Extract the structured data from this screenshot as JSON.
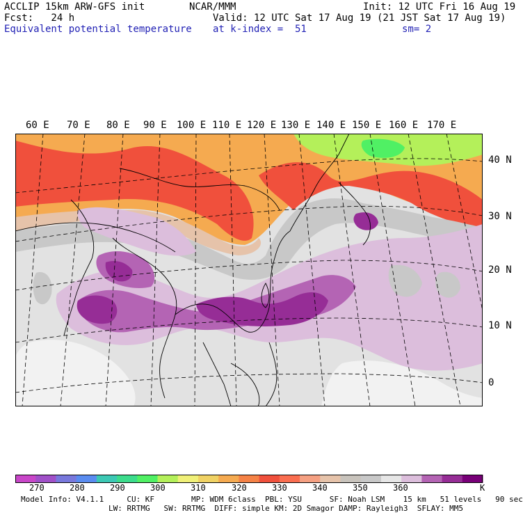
{
  "header": {
    "model": "ACCLIP 15km ARW-GFS init",
    "org": "NCAR/MMM",
    "init": "Init: 12 UTC Fri 16 Aug 19",
    "fcst": "Fcst:   24 h",
    "valid": "Valid: 12 UTC Sat 17 Aug 19 (21 JST Sat 17 Aug 19)",
    "field": "Equivalent potential temperature",
    "level": "at k-index =  51",
    "smooth": "sm= 2"
  },
  "map": {
    "lon_labels": [
      "60 E",
      "70 E",
      "80 E",
      "90 E",
      "100 E",
      "110 E",
      "120 E",
      "130 E",
      "140 E",
      "150 E",
      "160 E",
      "170 E"
    ],
    "lat_labels": [
      "40 N",
      "30 N",
      "20 N",
      "10 N",
      "0"
    ]
  },
  "colorbar": {
    "colors": [
      "#c846c8",
      "#a050c8",
      "#7878dc",
      "#5a8cf0",
      "#3cc8b4",
      "#3cdc8c",
      "#50f064",
      "#b4f05a",
      "#f0f078",
      "#f0d264",
      "#f5aa50",
      "#f58246",
      "#f0503c",
      "#fa6e50",
      "#f5a082",
      "#e6c3aa",
      "#c8c3bc",
      "#c8c8c8",
      "#e6e6e6",
      "#dcbedc",
      "#b464b4",
      "#962d96",
      "#780078"
    ],
    "labels": [
      "270",
      "280",
      "290",
      "300",
      "310",
      "320",
      "330",
      "340",
      "350",
      "360"
    ],
    "unit": "K"
  },
  "footer": {
    "line1": "Model Info: V4.1.1     CU: KF        MP: WDM 6class  PBL: YSU      SF: Noah LSM    15 km   51 levels   90 sec",
    "line2": "LW: RRTMG   SW: RRTMG  DIFF: simple KM: 2D Smagor DAMP: Rayleigh3  SFLAY: MM5"
  }
}
